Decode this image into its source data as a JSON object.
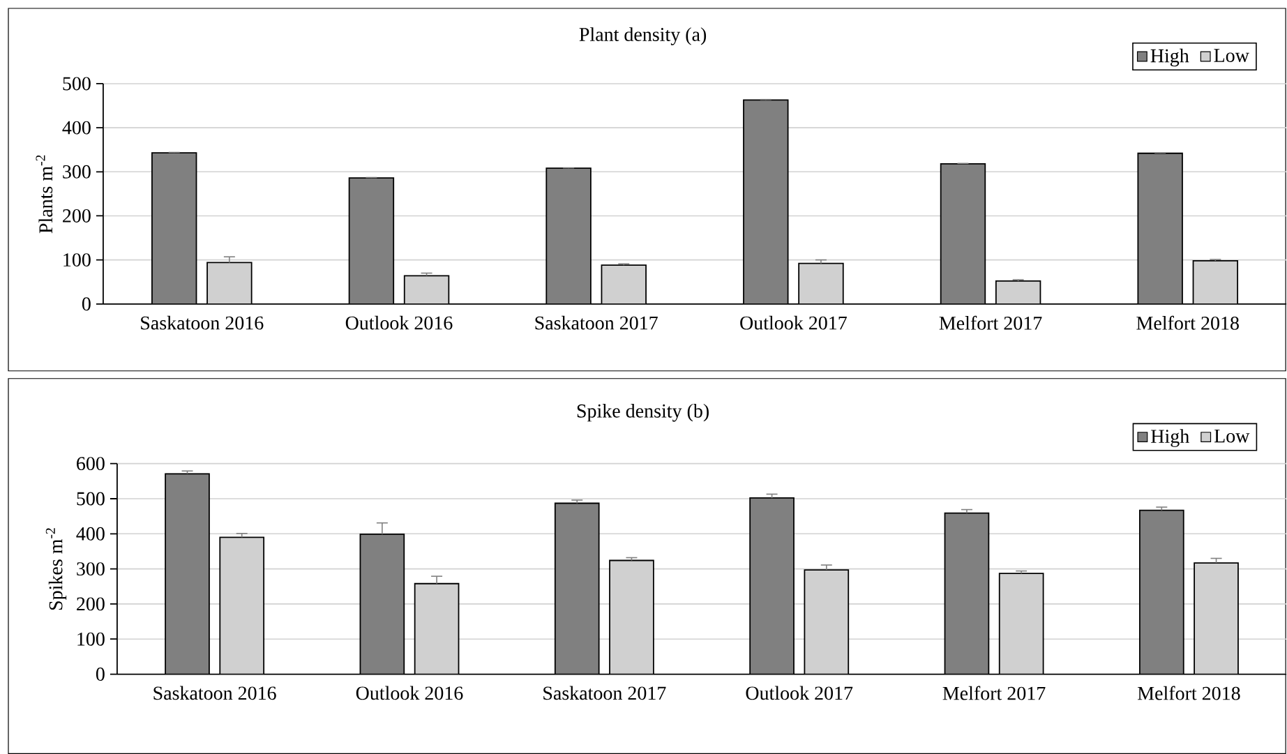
{
  "chart_data": [
    {
      "type": "bar",
      "title": "Plant density (a)",
      "ylabel": "Plants m$^{-2}$",
      "categories": [
        "Saskatoon 2016",
        "Outlook 2016",
        "Saskatoon 2017",
        "Outlook 2017",
        "Melfort 2017",
        "Melfort 2018"
      ],
      "series": [
        {
          "name": "High",
          "color": "#808080",
          "values": [
            343,
            286,
            308,
            463,
            318,
            342
          ],
          "errors": [
            1,
            1,
            1,
            1,
            1,
            1
          ]
        },
        {
          "name": "Low",
          "color": "#d0d0d0",
          "values": [
            94,
            64,
            88,
            92,
            52,
            98
          ],
          "errors": [
            13,
            6,
            3,
            8,
            3,
            3
          ]
        }
      ],
      "ylim": [
        0,
        500
      ],
      "yticks": [
        0,
        100,
        200,
        300,
        400,
        500
      ],
      "grid": "y",
      "legend": "top right"
    },
    {
      "type": "bar",
      "title": "Spike density (b)",
      "ylabel": "Spikes m$^{-2}$",
      "categories": [
        "Saskatoon 2016",
        "Outlook 2016",
        "Saskatoon 2017",
        "Outlook 2017",
        "Melfort 2017",
        "Melfort 2018"
      ],
      "series": [
        {
          "name": "High",
          "color": "#808080",
          "values": [
            571,
            399,
            487,
            502,
            459,
            467
          ],
          "errors": [
            8,
            32,
            9,
            11,
            10,
            9
          ]
        },
        {
          "name": "Low",
          "color": "#d0d0d0",
          "values": [
            390,
            258,
            324,
            297,
            287,
            317
          ],
          "errors": [
            11,
            21,
            8,
            14,
            7,
            13
          ]
        }
      ],
      "ylim": [
        0,
        600
      ],
      "yticks": [
        0,
        100,
        200,
        300,
        400,
        500,
        600
      ],
      "grid": "y",
      "legend": "top right"
    }
  ]
}
